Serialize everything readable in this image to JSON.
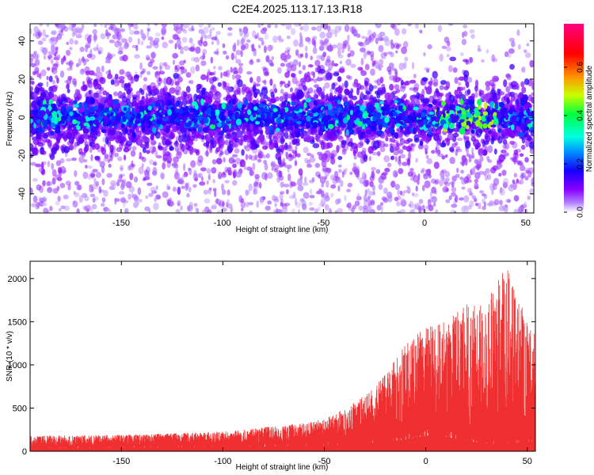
{
  "title": "C2E4.2025.113.17.13.R18",
  "chart_data": [
    {
      "type": "heatmap",
      "xlabel": "Height of straight line (km)",
      "ylabel": "Frequency (Hz)",
      "xlim": [
        -195,
        54
      ],
      "ylim": [
        -50,
        49
      ],
      "xticks": [
        -150,
        -100,
        -50,
        0,
        50
      ],
      "yticks": [
        -40,
        -20,
        0,
        20,
        40
      ],
      "grid": false,
      "colorbar": {
        "label": "Normalized spectral amplitude",
        "range": [
          0,
          0.78
        ],
        "ticks": [
          "0.0",
          "0.2",
          "0.4",
          "0.6"
        ],
        "tick_values": [
          0,
          0.2,
          0.4,
          0.6
        ],
        "colormap": [
          "#ffffff",
          "#8a00ff",
          "#1400ff",
          "#00e0ff",
          "#00ff40",
          "#c8ff00",
          "#ff8000",
          "#ff0000",
          "#ff0080"
        ]
      },
      "description_values": {
        "band_center_hz": 0,
        "band_halfwidth_hz": 6,
        "band_peak_amplitude_near_x": [
          10,
          30
        ],
        "band_peak_amplitude": 0.45
      }
    },
    {
      "type": "area",
      "xlabel": "Height of straight line (km)",
      "ylabel": "SNR (10 * v/v)",
      "xlim": [
        -195,
        54
      ],
      "ylim": [
        0,
        2200
      ],
      "xticks": [
        -150,
        -100,
        -50,
        0,
        50
      ],
      "yticks": [
        0,
        500,
        1000,
        1500,
        2000
      ],
      "grid": false,
      "series": [
        {
          "color": "#f03030",
          "envelope_x": [
            -195,
            -150,
            -120,
            -100,
            -80,
            -60,
            -50,
            -40,
            -30,
            -20,
            -10,
            0,
            10,
            20,
            30,
            40,
            50,
            54
          ],
          "envelope_y": [
            180,
            190,
            210,
            230,
            280,
            330,
            380,
            500,
            650,
            900,
            1250,
            1450,
            1500,
            1700,
            1750,
            2150,
            1500,
            1350
          ],
          "baseline_x": [
            -195,
            -150,
            -100,
            -60,
            -40,
            -20,
            -10,
            0,
            10,
            20,
            30,
            40,
            50,
            54
          ],
          "baseline_y": [
            60,
            70,
            80,
            110,
            130,
            180,
            230,
            300,
            280,
            200,
            150,
            150,
            180,
            200
          ]
        }
      ]
    }
  ]
}
